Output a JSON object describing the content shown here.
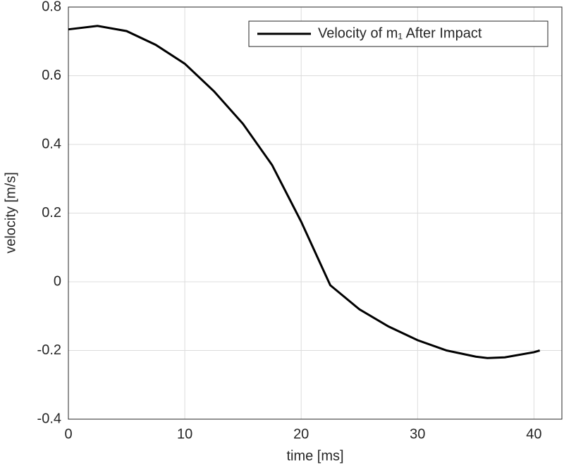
{
  "chart_data": {
    "type": "line",
    "x_label": "time [ms]",
    "y_label": "velocity [m/s]",
    "x": [
      0,
      2.5,
      5,
      7.5,
      10,
      12.5,
      15,
      17.5,
      20,
      22.5,
      25,
      27.5,
      30,
      32.5,
      35,
      36,
      37.5,
      40,
      40.5
    ],
    "series": [
      {
        "name": "Velocity of m₁ After Impact",
        "color": "#000000",
        "values": [
          0.735,
          0.745,
          0.73,
          0.69,
          0.635,
          0.555,
          0.46,
          0.34,
          0.175,
          -0.01,
          -0.08,
          -0.13,
          -0.17,
          -0.2,
          -0.218,
          -0.222,
          -0.22,
          -0.205,
          -0.2
        ]
      }
    ],
    "xlim": [
      0,
      42.4
    ],
    "xticks": [
      0,
      10,
      20,
      30,
      40
    ],
    "ylim": [
      -0.4,
      0.8
    ],
    "yticks": [
      -0.4,
      -0.2,
      0,
      0.2,
      0.4,
      0.6,
      0.8
    ],
    "grid": true,
    "legend": "upper right"
  }
}
